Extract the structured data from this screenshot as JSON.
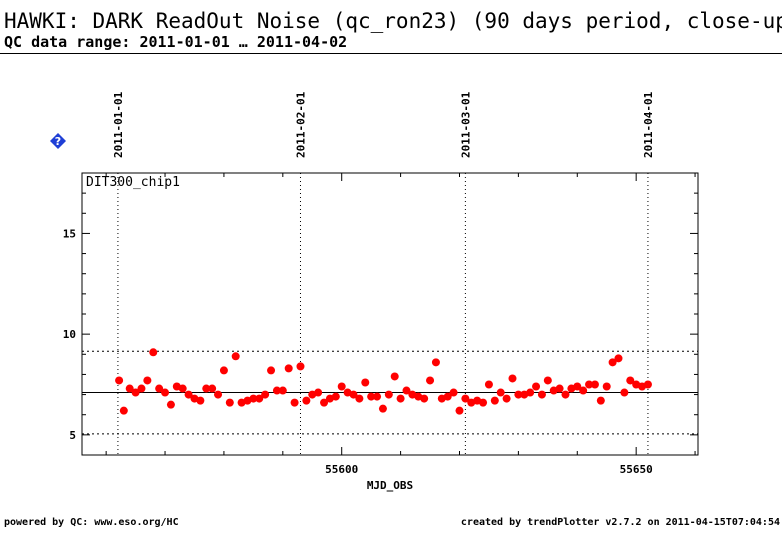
{
  "header": {
    "title": "HAWKI: DARK ReadOut Noise (qc_ron23) (90 days period, close-up",
    "subtitle": "QC data range: 2011-01-01 … 2011-04-02"
  },
  "footer": {
    "left": "powered by QC: www.eso.org/HC",
    "right": "created by trendPlotter v2.7.2 on 2011-04-15T07:04:54"
  },
  "icons": {
    "help": "help-diamond-icon",
    "help_color": "#1f3fd6"
  },
  "chart_data": {
    "type": "scatter",
    "panel_label": "DIT300_chip1",
    "xlabel": "MJD_OBS",
    "ylabel": "",
    "xlim": [
      55555.9,
      55660.5
    ],
    "ylim": [
      4.0,
      18.0
    ],
    "x_ticks": [
      55600,
      55650
    ],
    "y_ticks": [
      5,
      10,
      15
    ],
    "date_markers": [
      {
        "label": "2011-01-01",
        "mjd": 55562
      },
      {
        "label": "2011-02-01",
        "mjd": 55593
      },
      {
        "label": "2011-03-01",
        "mjd": 55621
      },
      {
        "label": "2011-04-01",
        "mjd": 55652
      }
    ],
    "reference_lines": {
      "mean": 7.1,
      "upper": 9.15,
      "lower": 5.05
    },
    "point_color": "#ff0000",
    "grid": false,
    "x": [
      55562.2,
      55563.0,
      55564.0,
      55565.0,
      55566.0,
      55567.0,
      55568.0,
      55569.0,
      55570.0,
      55571.0,
      55572.0,
      55573.0,
      55574.0,
      55575.0,
      55576.0,
      55577.0,
      55578.0,
      55579.0,
      55580.0,
      55581.0,
      55582.0,
      55583.0,
      55584.0,
      55585.0,
      55586.0,
      55587.0,
      55588.0,
      55589.0,
      55590.0,
      55591.0,
      55592.0,
      55593.0,
      55594.0,
      55595.0,
      55596.0,
      55597.0,
      55598.0,
      55599.0,
      55600.0,
      55601.0,
      55602.0,
      55603.0,
      55604.0,
      55605.0,
      55606.0,
      55607.0,
      55608.0,
      55609.0,
      55610.0,
      55611.0,
      55612.0,
      55613.0,
      55614.0,
      55615.0,
      55616.0,
      55617.0,
      55618.0,
      55619.0,
      55620.0,
      55621.0,
      55622.0,
      55623.0,
      55624.0,
      55625.0,
      55626.0,
      55627.0,
      55628.0,
      55629.0,
      55630.0,
      55631.0,
      55632.0,
      55633.0,
      55634.0,
      55635.0,
      55636.0,
      55637.0,
      55638.0,
      55639.0,
      55640.0,
      55641.0,
      55642.0,
      55643.0,
      55644.0,
      55645.0,
      55646.0,
      55647.0,
      55648.0,
      55649.0,
      55650.0,
      55651.0,
      55652.0
    ],
    "y": [
      7.7,
      6.2,
      7.3,
      7.1,
      7.3,
      7.7,
      9.1,
      7.3,
      7.1,
      6.5,
      7.4,
      7.3,
      7.0,
      6.8,
      6.7,
      7.3,
      7.3,
      7.0,
      8.2,
      6.6,
      8.9,
      6.6,
      6.7,
      6.8,
      6.8,
      7.0,
      8.2,
      7.2,
      7.2,
      8.3,
      6.6,
      8.4,
      6.7,
      7.0,
      7.1,
      6.6,
      6.8,
      6.9,
      7.4,
      7.1,
      7.0,
      6.8,
      7.6,
      6.9,
      6.9,
      6.3,
      7.0,
      7.9,
      6.8,
      7.2,
      7.0,
      6.9,
      6.8,
      7.7,
      8.6,
      6.8,
      6.9,
      7.1,
      6.2,
      6.8,
      6.6,
      6.7,
      6.6,
      7.5,
      6.7,
      7.1,
      6.8,
      7.8,
      7.0,
      7.0,
      7.1,
      7.4,
      7.0,
      7.7,
      7.2,
      7.3,
      7.0,
      7.3,
      7.4,
      7.2,
      7.5,
      7.5,
      6.7,
      7.4,
      8.6,
      8.8,
      7.1,
      7.7,
      7.5,
      7.4,
      7.5
    ]
  }
}
